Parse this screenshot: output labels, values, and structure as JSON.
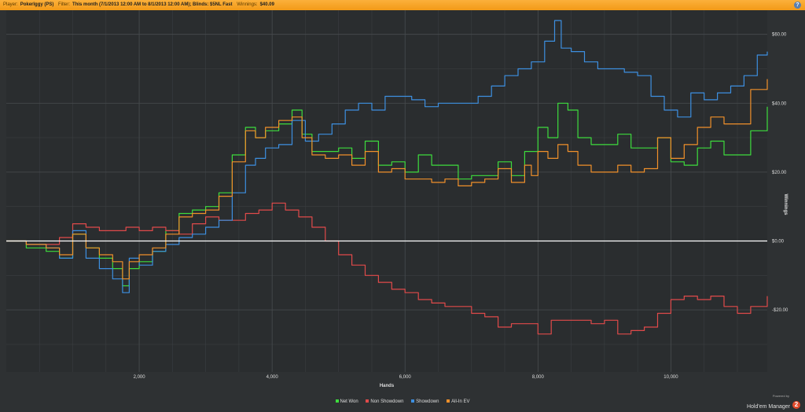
{
  "header": {
    "player_label": "Player:",
    "player": "Pokerlggy (PS)",
    "filter_label": "Filter:",
    "filter": "This month (7/1/2013 12:00 AM to 8/1/2013 12:00 AM); Blinds: $5NL Fast",
    "winnings_label": "Winnings:",
    "winnings": "$40.09",
    "help_icon": "?"
  },
  "brand": {
    "powered_by": "Powered by",
    "name": "Hold'em Manager",
    "badge": "2"
  },
  "colors": {
    "net_won": "#3ddc3d",
    "non_showdown": "#e04a4a",
    "showdown": "#3d8fe0",
    "all_in_ev": "#f0902a",
    "zero_line": "#ffffff"
  },
  "chart_data": {
    "type": "line",
    "xlabel": "Hands",
    "ylabel": "Winnings",
    "xlim": [
      0,
      11450
    ],
    "ylim": [
      -38,
      67
    ],
    "x_ticks": [
      {
        "value": 2000,
        "label": "2,000"
      },
      {
        "value": 4000,
        "label": "4,000"
      },
      {
        "value": 6000,
        "label": "6,000"
      },
      {
        "value": 8000,
        "label": "8,000"
      },
      {
        "value": 10000,
        "label": "10,000"
      }
    ],
    "y_ticks": [
      {
        "value": 60,
        "label": "$60.00"
      },
      {
        "value": 40,
        "label": "$40.00"
      },
      {
        "value": 20,
        "label": "$20.00"
      },
      {
        "value": 0,
        "label": "$0.00"
      },
      {
        "value": -20,
        "label": "-$20.00"
      }
    ],
    "legend_position": "bottom",
    "grid": true,
    "series": [
      {
        "name": "Net Won",
        "color": "#3ddc3d",
        "x": [
          0,
          300,
          600,
          800,
          1000,
          1200,
          1400,
          1600,
          1750,
          1850,
          2000,
          2200,
          2400,
          2600,
          2800,
          3000,
          3200,
          3400,
          3600,
          3750,
          3900,
          4100,
          4300,
          4450,
          4600,
          4800,
          5000,
          5200,
          5400,
          5600,
          5800,
          6000,
          6200,
          6400,
          6600,
          6800,
          7000,
          7200,
          7400,
          7600,
          7800,
          7900,
          8000,
          8150,
          8300,
          8450,
          8600,
          8800,
          9000,
          9200,
          9400,
          9600,
          9800,
          10000,
          10200,
          10400,
          10600,
          10800,
          11000,
          11200,
          11450
        ],
        "y": [
          0,
          -2,
          -3,
          -5,
          2,
          -2,
          -5,
          -8,
          -13,
          -8,
          -6,
          -3,
          3,
          8,
          9,
          10,
          14,
          25,
          33,
          30,
          32,
          34,
          38,
          31,
          26,
          26,
          27,
          24,
          29,
          22,
          23,
          20,
          25,
          22,
          22,
          18,
          19,
          19,
          23,
          19,
          26,
          26,
          33,
          30,
          40,
          38,
          30,
          28,
          28,
          31,
          27,
          27,
          30,
          23,
          22,
          27,
          29,
          25,
          25,
          32,
          39
        ]
      },
      {
        "name": "Non Showdown",
        "color": "#e04a4a",
        "x": [
          0,
          300,
          600,
          800,
          1000,
          1200,
          1400,
          1600,
          1800,
          2000,
          2200,
          2400,
          2600,
          2800,
          3000,
          3200,
          3400,
          3600,
          3800,
          4000,
          4200,
          4400,
          4600,
          4800,
          5000,
          5200,
          5400,
          5600,
          5800,
          6000,
          6200,
          6400,
          6600,
          6800,
          7000,
          7200,
          7400,
          7600,
          7800,
          8000,
          8200,
          8400,
          8600,
          8800,
          9000,
          9200,
          9400,
          9600,
          9800,
          10000,
          10200,
          10400,
          10600,
          10800,
          11000,
          11200,
          11450
        ],
        "y": [
          0,
          -1,
          -1,
          1,
          5,
          4,
          3,
          3,
          4,
          3,
          4,
          3,
          2,
          5,
          7,
          6,
          6,
          8,
          9,
          11,
          9,
          7,
          4,
          0,
          -4,
          -7,
          -10,
          -12,
          -14,
          -15,
          -17,
          -18,
          -19,
          -19,
          -21,
          -22,
          -25,
          -24,
          -24,
          -27,
          -23,
          -23,
          -23,
          -24,
          -23,
          -27,
          -26,
          -25,
          -21,
          -17,
          -16,
          -17,
          -16,
          -19,
          -21,
          -19,
          -16
        ]
      },
      {
        "name": "Showdown",
        "color": "#3d8fe0",
        "x": [
          0,
          300,
          600,
          800,
          1000,
          1200,
          1400,
          1600,
          1750,
          1850,
          2000,
          2200,
          2400,
          2600,
          2800,
          3000,
          3200,
          3400,
          3600,
          3750,
          3900,
          4100,
          4300,
          4500,
          4700,
          4900,
          5100,
          5300,
          5500,
          5700,
          5900,
          6100,
          6300,
          6500,
          6700,
          6900,
          7100,
          7300,
          7500,
          7700,
          7900,
          8100,
          8250,
          8350,
          8500,
          8700,
          8900,
          9100,
          9300,
          9500,
          9700,
          9900,
          10100,
          10300,
          10500,
          10700,
          10900,
          11100,
          11300,
          11450
        ],
        "y": [
          0,
          -1,
          -2,
          -5,
          3,
          -5,
          -8,
          -11,
          -15,
          -5,
          -7,
          -3,
          -1,
          1,
          2,
          4,
          6,
          14,
          22,
          24,
          27,
          28,
          35,
          29,
          31,
          34,
          38,
          40,
          38,
          42,
          42,
          41,
          39,
          40,
          40,
          40,
          42,
          45,
          48,
          50,
          52,
          58,
          64,
          56,
          55,
          52,
          50,
          50,
          49,
          48,
          42,
          38,
          36,
          43,
          41,
          43,
          45,
          48,
          54,
          55
        ]
      },
      {
        "name": "All-In EV",
        "color": "#f0902a",
        "x": [
          0,
          300,
          600,
          800,
          1000,
          1200,
          1400,
          1600,
          1750,
          1850,
          2000,
          2200,
          2400,
          2600,
          2800,
          3000,
          3200,
          3400,
          3600,
          3750,
          3900,
          4100,
          4300,
          4450,
          4600,
          4800,
          5000,
          5200,
          5400,
          5600,
          5800,
          6000,
          6200,
          6400,
          6600,
          6800,
          7000,
          7200,
          7400,
          7600,
          7800,
          7900,
          8000,
          8150,
          8300,
          8450,
          8600,
          8800,
          9000,
          9200,
          9400,
          9600,
          9800,
          10000,
          10200,
          10400,
          10600,
          10800,
          11000,
          11200,
          11450
        ],
        "y": [
          0,
          -1,
          -2,
          -4,
          2,
          -2,
          -4,
          -6,
          -11,
          -6,
          -4,
          -2,
          2,
          7,
          8,
          9,
          13,
          23,
          32,
          30,
          33,
          35,
          36,
          30,
          25,
          24,
          25,
          22,
          26,
          20,
          21,
          18,
          18,
          17,
          18,
          16,
          17,
          18,
          21,
          17,
          22,
          19,
          26,
          24,
          28,
          26,
          22,
          20,
          20,
          22,
          20,
          21,
          30,
          24,
          28,
          33,
          36,
          34,
          34,
          44,
          47
        ]
      }
    ]
  }
}
